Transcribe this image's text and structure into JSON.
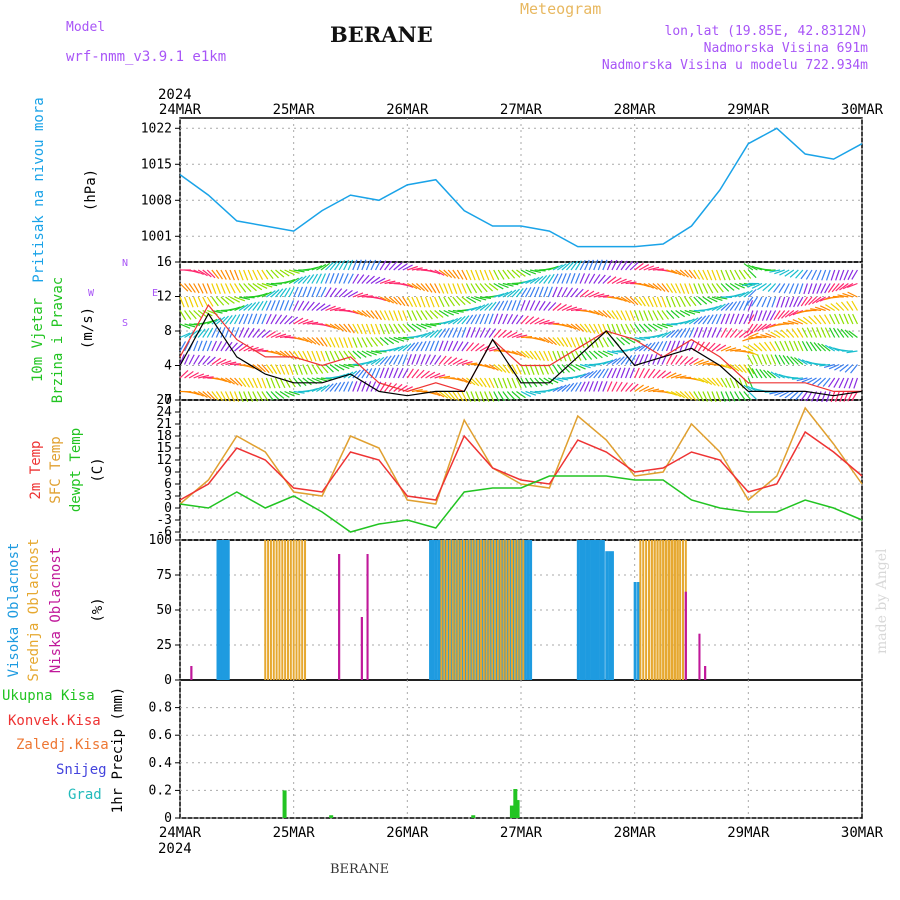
{
  "header": {
    "model_label": "Model",
    "model_name": "wrf-nmm_v3.9.1  e1km",
    "station": "BERANE",
    "product": "Meteogram",
    "coords": "lon,lat (19.85E, 42.8312N)",
    "elevation": "Nadmorska Visina 691m",
    "model_elevation": "Nadmorska Visina u modelu 722.934m",
    "footer_station": "BERANE",
    "credit": "made by Angel"
  },
  "colors": {
    "pressure": "#1aa3e8",
    "temp2m": "#ee3333",
    "sfc": "#e0a030",
    "dewpt": "#22c422",
    "high_cloud": "#1e9be0",
    "mid_cloud": "#e6a830",
    "low_cloud": "#c0189a",
    "precip_total": "#22c422",
    "precip_conv": "#ee3333",
    "precip_frozen": "#ee7733",
    "precip_snow": "#4444dd",
    "precip_hail": "#22bbbb",
    "wind_speed": "#000000",
    "wind_gust": "#ee3333",
    "header": "#a855f7",
    "meteogram": "#e8b860"
  },
  "chart_data": [
    {
      "type": "line",
      "id": "pressure",
      "ylabel": "Pritisak na nivou mora",
      "unit": "(hPa)",
      "ylim": [
        996,
        1024
      ],
      "yticks": [
        1001,
        1008,
        1015,
        1022
      ],
      "x_days": [
        "24MAR",
        "25MAR",
        "26MAR",
        "27MAR",
        "28MAR",
        "29MAR",
        "30MAR"
      ],
      "year": "2024",
      "x": [
        0,
        0.25,
        0.5,
        0.75,
        1,
        1.25,
        1.5,
        1.75,
        2,
        2.25,
        2.5,
        2.75,
        3,
        3.25,
        3.5,
        3.75,
        4,
        4.25,
        4.5,
        4.75,
        5,
        5.25,
        5.5,
        5.75,
        6
      ],
      "values": [
        1013,
        1009,
        1004,
        1003,
        1002,
        1006,
        1009,
        1008,
        1011,
        1012,
        1006,
        1003,
        1003,
        1002,
        999,
        999,
        999,
        999.5,
        1003,
        1010,
        1019,
        1022,
        1017,
        1016,
        1019
      ]
    },
    {
      "type": "line",
      "id": "wind",
      "ylabel_line1": "10m Vjetar",
      "ylabel_line2": "Brzina i Pravac",
      "unit": "(m/s)",
      "ylim": [
        0,
        16
      ],
      "yticks": [
        0,
        4,
        8,
        12,
        16
      ],
      "compass": [
        "N",
        "E",
        "S",
        "W"
      ],
      "x": [
        0,
        0.25,
        0.5,
        0.75,
        1,
        1.25,
        1.5,
        1.75,
        2,
        2.25,
        2.5,
        2.75,
        3,
        3.25,
        3.5,
        3.75,
        4,
        4.25,
        4.5,
        4.75,
        5,
        5.25,
        5.5,
        5.75,
        6
      ],
      "speed": [
        4,
        10,
        5,
        3,
        2,
        2,
        3,
        1,
        0.5,
        1,
        1,
        7,
        2,
        2,
        5,
        8,
        4,
        5,
        6,
        4,
        1,
        1,
        1,
        0.5,
        1
      ],
      "gust": [
        5,
        11,
        7,
        5,
        5,
        4,
        5,
        2,
        1,
        2,
        1,
        7,
        4,
        4,
        6,
        8,
        7,
        5,
        7,
        5,
        2,
        2,
        2,
        1,
        1
      ]
    },
    {
      "type": "line",
      "id": "temperature",
      "ylabel_line1": "2m Temp",
      "ylabel_line2": "SFC Temp",
      "ylabel_line3": "dewpt Temp",
      "unit": "(C)",
      "ylim": [
        -8,
        27
      ],
      "yticks": [
        -6,
        -3,
        0,
        3,
        6,
        9,
        12,
        15,
        18,
        21,
        24,
        27
      ],
      "x": [
        0,
        0.25,
        0.5,
        0.75,
        1,
        1.25,
        1.5,
        1.75,
        2,
        2.25,
        2.5,
        2.75,
        3,
        3.25,
        3.5,
        3.75,
        4,
        4.25,
        4.5,
        4.75,
        5,
        5.25,
        5.5,
        5.75,
        6
      ],
      "temp2m": [
        2,
        6,
        15,
        12,
        5,
        4,
        14,
        12,
        3,
        2,
        18,
        10,
        7,
        6,
        17,
        14,
        9,
        10,
        14,
        12,
        4,
        6,
        19,
        14,
        8
      ],
      "sfc": [
        1,
        7,
        18,
        14,
        4,
        3,
        18,
        15,
        2,
        1,
        22,
        10,
        6,
        5,
        23,
        17,
        8,
        9,
        21,
        14,
        2,
        8,
        25,
        16,
        6
      ],
      "dewpt": [
        1,
        0,
        4,
        0,
        3,
        -1,
        -6,
        -4,
        -3,
        -5,
        4,
        5,
        5,
        8,
        8,
        8,
        7,
        7,
        2,
        0,
        -1,
        -1,
        2,
        0,
        -3
      ]
    },
    {
      "type": "bar",
      "id": "clouds",
      "ylabel_line1": "Visoka Oblacnost",
      "ylabel_line2": "Srednja Oblacnost",
      "ylabel_line3": "Niska Oblacnost",
      "unit": "(%)",
      "ylim": [
        0,
        100
      ],
      "yticks": [
        0,
        25,
        50,
        75,
        100
      ],
      "series": [
        {
          "name": "Visoka Oblacnost",
          "x_start": [
            0.33,
            2.2,
            3.5,
            3.75,
            4.0
          ],
          "x_end": [
            0.42,
            3.08,
            3.72,
            3.8,
            4.03
          ],
          "values": [
            100,
            100,
            100,
            92,
            70
          ]
        },
        {
          "name": "Srednja Oblacnost",
          "x_start": [
            0.75,
            2.3,
            4.05,
            4.15
          ],
          "x_end": [
            1.1,
            3.02,
            4.38,
            4.45
          ],
          "values": [
            100,
            100,
            100,
            100
          ]
        },
        {
          "name": "Niska Oblacnost",
          "x_start": [
            0.1,
            1.4,
            1.6,
            1.65,
            4.45,
            4.57,
            4.62
          ],
          "x_end": [
            0.1,
            1.4,
            1.6,
            1.65,
            4.45,
            4.57,
            4.62
          ],
          "values": [
            10,
            90,
            45,
            90,
            63,
            33,
            10
          ]
        }
      ]
    },
    {
      "type": "bar",
      "id": "precip",
      "ylabel": "1hr Precip (mm)",
      "legend": [
        "Ukupna Kisa",
        "Konvek.Kisa",
        "Zaledj.Kisa",
        "Snijeg",
        "Grad"
      ],
      "ylim": [
        0,
        1
      ],
      "yticks": [
        0,
        0.2,
        0.4,
        0.6,
        0.8
      ],
      "x": [
        0.92,
        1.33,
        2.58,
        2.92,
        2.95,
        2.97
      ],
      "values": [
        0.2,
        0.02,
        0.02,
        0.09,
        0.21,
        0.13
      ]
    }
  ]
}
